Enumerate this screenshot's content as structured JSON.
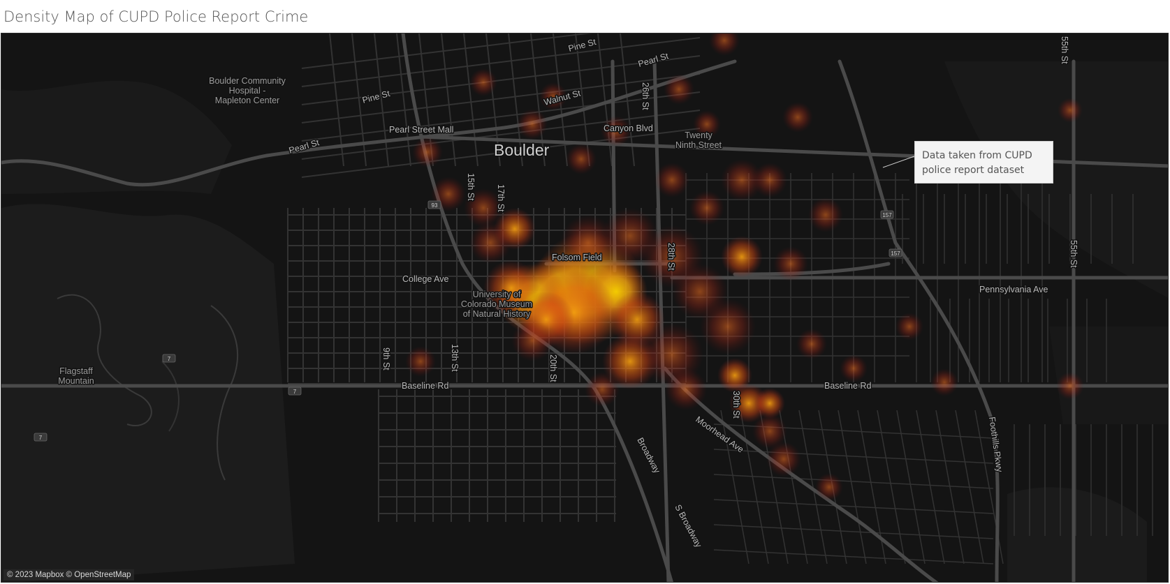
{
  "title": "Density Map of CUPD Police Report Crime",
  "callout": {
    "line1": "Data taken from CUPD",
    "line2": "police report dataset"
  },
  "attribution": "© 2023 Mapbox © OpenStreetMap",
  "colors": {
    "background": "#141414",
    "terrain": "#1c1c1c",
    "road_major": "#4a4a4a",
    "road_minor": "#333333",
    "heat_low": "#8a1f1f",
    "heat_mid": "#e05a10",
    "heat_high": "#f5c800"
  },
  "labels": {
    "city": "Boulder",
    "boulder_community_1": "Boulder Community",
    "boulder_community_2": "Hospital -",
    "boulder_community_3": "Mapleton Center",
    "pine_st_1": "Pine St",
    "pine_st_2": "Pine St",
    "pearl_st_1": "Pearl St",
    "pearl_st_2": "Pearl St",
    "pearl_street_mall": "Pearl Street Mall",
    "walnut_st": "Walnut St",
    "canyon_blvd": "Canyon Blvd",
    "twenty_ninth_1": "Twenty",
    "twenty_ninth_2": "Ninth Street",
    "st_15th": "15th St",
    "st_17th": "17th St",
    "st_26th": "26th St",
    "st_28th": "28th St",
    "st_9th": "9th St",
    "st_13th": "13th St",
    "st_20th": "20th St",
    "st_30th": "30th St",
    "st_55th_1": "55th St",
    "st_55th_2": "55th St",
    "folsom_field": "Folsom Field",
    "college_ave": "College Ave",
    "museum_1": "University of",
    "museum_2": "Colorado Museum",
    "museum_3": "of Natural History",
    "flagstaff_1": "Flagstaff",
    "flagstaff_2": "Mountain",
    "baseline_rd_1": "Baseline Rd",
    "baseline_rd_2": "Baseline Rd",
    "pennsylvania_ave": "Pennsylvania Ave",
    "moorhead_ave": "Moorhead Ave",
    "broadway": "Broadway",
    "s_broadway": "S Broadway",
    "foothills_pkwy": "Foothills Pkwy",
    "route_93": "93",
    "route_157_1": "157",
    "route_157_2": "157",
    "route_7a": "7",
    "route_7b": "7",
    "route_7c": "7"
  }
}
